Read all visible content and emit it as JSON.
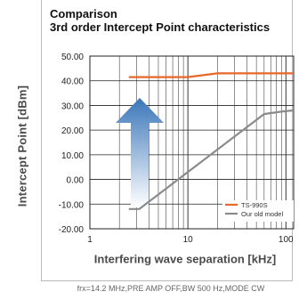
{
  "title_line1": "Comparison",
  "title_line2": "3rd order Intercept Point characteristics",
  "note": "frx=14.2 MHz,PRE AMP OFF,BW 500 Hz,MODE CW",
  "colors": {
    "ts990s": "#e8672a",
    "old_model": "#8a8a8a",
    "arrow_top": "#3a76b9",
    "arrow_bottom": "#ffffff"
  },
  "chart_data": {
    "type": "line",
    "title": "Comparison 3rd order Intercept Point characteristics",
    "xlabel": "Interfering wave separation [kHz]",
    "ylabel": "Intercept Point [dBm]",
    "x_scale": "log",
    "xlim": [
      1,
      120
    ],
    "ylim": [
      -20,
      50
    ],
    "y_ticks": [
      50,
      40,
      30,
      20,
      10,
      0,
      -10,
      -20
    ],
    "y_tick_labels": [
      "50.00",
      "40.00",
      "30.00",
      "20.00",
      "10.00",
      "0.00",
      "-10.00",
      "-20.00"
    ],
    "x_ticks": [
      1,
      10,
      100
    ],
    "x_tick_labels": [
      "1",
      "10",
      "100"
    ],
    "grid": true,
    "legend": "bottom-right",
    "series": [
      {
        "name": "TS-990S",
        "color": "#e8672a",
        "x": [
          2.5,
          10,
          20,
          120
        ],
        "y": [
          41.5,
          41.5,
          43.0,
          43.0
        ]
      },
      {
        "name": "Our old model",
        "color": "#8a8a8a",
        "x": [
          2.5,
          3.2,
          60,
          90,
          120
        ],
        "y": [
          -12,
          -12,
          26.5,
          27.5,
          28.0
        ]
      }
    ]
  }
}
